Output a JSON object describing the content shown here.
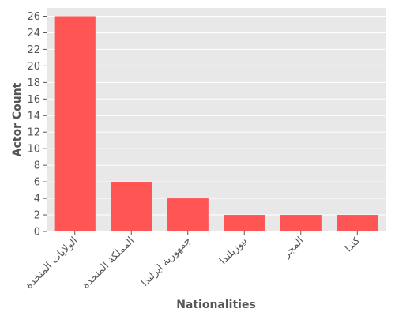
{
  "chart_data": {
    "type": "bar",
    "title": "",
    "xlabel": "Nationalities",
    "ylabel": "Actor Count",
    "categories": [
      "الولايات المتحدة",
      "المملكة المتحدة",
      "جمهورية ايرلندا",
      "نيوزيلندا",
      "المجر",
      "كندا"
    ],
    "values": [
      26,
      6,
      4,
      2,
      2,
      2
    ],
    "ylim": [
      0,
      27
    ],
    "yticks": [
      0,
      2,
      4,
      6,
      8,
      10,
      12,
      14,
      16,
      18,
      20,
      22,
      24,
      26
    ],
    "grid": true,
    "legend": "none",
    "colors": {
      "bar": "#ff5555",
      "plot_bg": "#e8e8e8",
      "grid": "#ffffff",
      "text": "#555555"
    }
  }
}
